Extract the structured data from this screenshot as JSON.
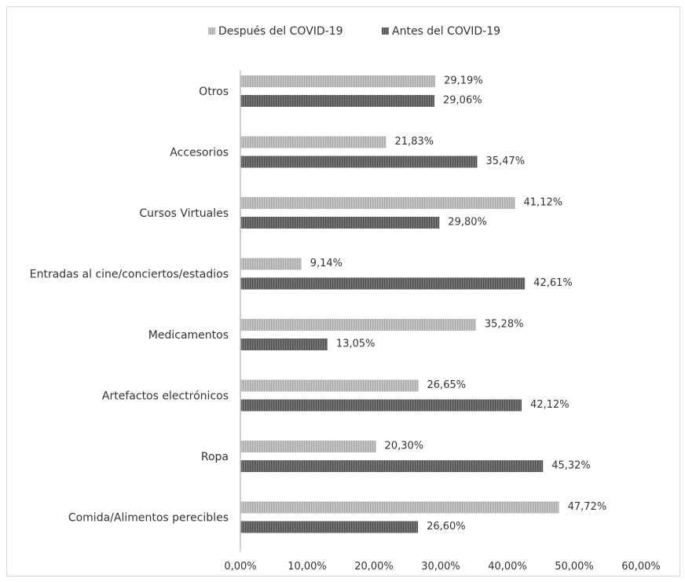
{
  "chart_data": {
    "type": "bar",
    "orientation": "horizontal",
    "categories": [
      "Otros",
      "Accesorios",
      "Cursos Virtuales",
      "Entradas al cine/conciertos/estadios",
      "Medicamentos",
      "Artefactos electrónicos",
      "Ropa",
      "Comida/Alimentos perecibles"
    ],
    "series": [
      {
        "name": "Después del COVID-19",
        "values": [
          29.19,
          21.83,
          41.12,
          9.14,
          35.28,
          26.65,
          20.3,
          47.72
        ],
        "labels": [
          "29,19%",
          "21,83%",
          "41,12%",
          "9,14%",
          "35,28%",
          "26,65%",
          "20,30%",
          "47,72%"
        ],
        "color": "#c8c8c8",
        "stripe_color": "#a6a6a6"
      },
      {
        "name": "Antes del COVID-19",
        "values": [
          29.06,
          35.47,
          29.8,
          42.61,
          13.05,
          42.12,
          45.32,
          26.6
        ],
        "labels": [
          "29,06%",
          "35,47%",
          "29,80%",
          "42,61%",
          "13,05%",
          "42,12%",
          "45,32%",
          "26,60%"
        ],
        "color": "#7a7a7a",
        "stripe_color": "#4d4d4d"
      }
    ],
    "xlim": [
      0,
      60
    ],
    "xticks": [
      "0,00%",
      "10,00%",
      "20,00%",
      "30,00%",
      "40,00%",
      "50,00%",
      "60,00%"
    ],
    "grid": false,
    "legend_position": "top-center"
  }
}
